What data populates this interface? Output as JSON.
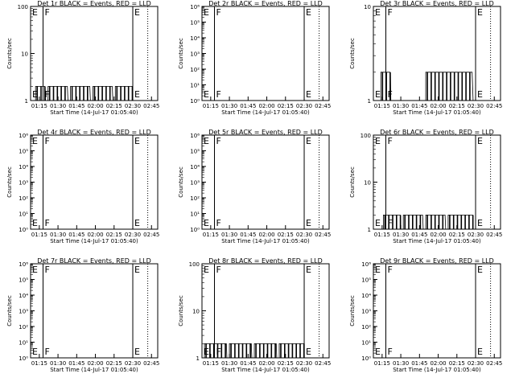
{
  "colors": {
    "events": "#000000",
    "lld": "#ff0000",
    "background": "#ffffff"
  },
  "chart_data": [
    {
      "type": "line",
      "title": "Det 1r BLACK = Events, RED = LLD",
      "xlabel": "Start Time (14-Jul-17 01:05:40)",
      "ylabel": "Counts/sec",
      "yscale": "log",
      "ylim": [
        1,
        100
      ],
      "ytick_labels": [
        "1",
        "10",
        "100"
      ],
      "ytick_values": [
        1,
        10,
        100
      ],
      "xtick_labels": [
        "01:15",
        "01:30",
        "01:45",
        "02:00",
        "02:15",
        "02:30",
        "02:45"
      ],
      "xlim_minutes": [
        68,
        170
      ],
      "markers": [
        {
          "label": "E",
          "minute": 68
        },
        {
          "label": "F",
          "minute": 78
        },
        {
          "label": "E",
          "minute": 150
        }
      ],
      "dotted_line_minute": 162,
      "series": [
        {
          "name": "Events",
          "segments": [
            {
              "from": 72,
              "to": 80,
              "level": 2
            },
            {
              "from": 82,
              "to": 98,
              "level": 2
            },
            {
              "from": 100,
              "to": 116,
              "level": 2
            },
            {
              "from": 118,
              "to": 134,
              "level": 2
            },
            {
              "from": 136,
              "to": 150,
              "level": 2
            }
          ]
        }
      ]
    },
    {
      "type": "line",
      "title": "Det 2r BLACK = Events, RED = LLD",
      "xlabel": "Start Time (14-Jul-17 01:05:40)",
      "ylabel": "Counts/sec",
      "yscale": "log",
      "ylim": [
        1,
        1000000
      ],
      "ytick_labels": [
        "10⁰",
        "10¹",
        "10²",
        "10³",
        "10⁴",
        "10⁵",
        "10⁶"
      ],
      "ytick_values": [
        1,
        10,
        100,
        1000,
        10000,
        100000,
        1000000
      ],
      "xtick_labels": [
        "01:15",
        "01:30",
        "01:45",
        "02:00",
        "02:15",
        "02:30",
        "02:45"
      ],
      "xlim_minutes": [
        68,
        170
      ],
      "markers": [
        {
          "label": "E",
          "minute": 68
        },
        {
          "label": "F",
          "minute": 78
        },
        {
          "label": "E",
          "minute": 150
        }
      ],
      "dotted_line_minute": 162,
      "series": []
    },
    {
      "type": "line",
      "title": "Det 3r BLACK = Events, RED = LLD",
      "xlabel": "Start Time (14-Jul-17 01:05:40)",
      "ylabel": "Counts/sec",
      "yscale": "log",
      "ylim": [
        1,
        10
      ],
      "ytick_labels": [
        "1",
        "10"
      ],
      "ytick_values": [
        1,
        10
      ],
      "xtick_labels": [
        "01:15",
        "01:30",
        "01:45",
        "02:00",
        "02:15",
        "02:30",
        "02:45"
      ],
      "xlim_minutes": [
        68,
        170
      ],
      "markers": [
        {
          "label": "E",
          "minute": 68
        },
        {
          "label": "F",
          "minute": 78
        },
        {
          "label": "E",
          "minute": 150
        }
      ],
      "dotted_line_minute": 162,
      "series": [
        {
          "name": "Events",
          "segments": [
            {
              "from": 74,
              "to": 82,
              "level": 2
            },
            {
              "from": 110,
              "to": 148,
              "level": 2
            }
          ]
        }
      ]
    },
    {
      "type": "line",
      "title": "Det 4r BLACK = Events, RED = LLD",
      "xlabel": "Start Time (14-Jul-17 01:05:40)",
      "ylabel": "Counts/sec",
      "yscale": "log",
      "ylim": [
        1,
        1000000
      ],
      "ytick_labels": [
        "10⁰",
        "10¹",
        "10²",
        "10³",
        "10⁴",
        "10⁵",
        "10⁶"
      ],
      "ytick_values": [
        1,
        10,
        100,
        1000,
        10000,
        100000,
        1000000
      ],
      "xtick_labels": [
        "01:15",
        "01:30",
        "01:45",
        "02:00",
        "02:15",
        "02:30",
        "02:45"
      ],
      "xlim_minutes": [
        68,
        170
      ],
      "markers": [
        {
          "label": "E",
          "minute": 68
        },
        {
          "label": "F",
          "minute": 78
        },
        {
          "label": "E",
          "minute": 150
        }
      ],
      "dotted_line_minute": 162,
      "series": []
    },
    {
      "type": "line",
      "title": "Det 5r BLACK = Events, RED = LLD",
      "xlabel": "Start Time (14-Jul-17 01:05:40)",
      "ylabel": "Counts/sec",
      "yscale": "log",
      "ylim": [
        1,
        1000000
      ],
      "ytick_labels": [
        "10⁰",
        "10¹",
        "10²",
        "10³",
        "10⁴",
        "10⁵",
        "10⁶"
      ],
      "ytick_values": [
        1,
        10,
        100,
        1000,
        10000,
        100000,
        1000000
      ],
      "xtick_labels": [
        "01:15",
        "01:30",
        "01:45",
        "02:00",
        "02:15",
        "02:30",
        "02:45"
      ],
      "xlim_minutes": [
        68,
        170
      ],
      "markers": [
        {
          "label": "E",
          "minute": 68
        },
        {
          "label": "F",
          "minute": 78
        },
        {
          "label": "E",
          "minute": 150
        }
      ],
      "dotted_line_minute": 162,
      "series": []
    },
    {
      "type": "line",
      "title": "Det 6r BLACK = Events, RED = LLD",
      "xlabel": "Start Time (14-Jul-17 01:05:40)",
      "ylabel": "Counts/sec",
      "yscale": "log",
      "ylim": [
        1,
        100
      ],
      "ytick_labels": [
        "1",
        "10",
        "100"
      ],
      "ytick_values": [
        1,
        10,
        100
      ],
      "xtick_labels": [
        "01:15",
        "01:30",
        "01:45",
        "02:00",
        "02:15",
        "02:30",
        "02:45"
      ],
      "xlim_minutes": [
        68,
        170
      ],
      "markers": [
        {
          "label": "E",
          "minute": 68
        },
        {
          "label": "F",
          "minute": 78
        },
        {
          "label": "E",
          "minute": 150
        }
      ],
      "dotted_line_minute": 162,
      "series": [
        {
          "name": "Events",
          "segments": [
            {
              "from": 76,
              "to": 90,
              "level": 2
            },
            {
              "from": 92,
              "to": 108,
              "level": 2
            },
            {
              "from": 110,
              "to": 126,
              "level": 2
            },
            {
              "from": 128,
              "to": 148,
              "level": 2
            }
          ]
        }
      ]
    },
    {
      "type": "line",
      "title": "Det 7r BLACK = Events, RED = LLD",
      "xlabel": "Start Time (14-Jul-17 01:05:40)",
      "ylabel": "Counts/sec",
      "yscale": "log",
      "ylim": [
        1,
        1000000
      ],
      "ytick_labels": [
        "10⁰",
        "10¹",
        "10²",
        "10³",
        "10⁴",
        "10⁵",
        "10⁶"
      ],
      "ytick_values": [
        1,
        10,
        100,
        1000,
        10000,
        100000,
        1000000
      ],
      "xtick_labels": [
        "01:15",
        "01:30",
        "01:45",
        "02:00",
        "02:15",
        "02:30",
        "02:45"
      ],
      "xlim_minutes": [
        68,
        170
      ],
      "markers": [
        {
          "label": "E",
          "minute": 68
        },
        {
          "label": "F",
          "minute": 78
        },
        {
          "label": "E",
          "minute": 150
        }
      ],
      "dotted_line_minute": 162,
      "series": []
    },
    {
      "type": "line",
      "title": "Det 8r BLACK = Events, RED = LLD",
      "xlabel": "Start Time (14-Jul-17 01:05:40)",
      "ylabel": "Counts/sec",
      "yscale": "log",
      "ylim": [
        1,
        100
      ],
      "ytick_labels": [
        "1",
        "10",
        "100"
      ],
      "ytick_values": [
        1,
        10,
        100
      ],
      "xtick_labels": [
        "01:15",
        "01:30",
        "01:45",
        "02:00",
        "02:15",
        "02:30",
        "02:45"
      ],
      "xlim_minutes": [
        68,
        170
      ],
      "markers": [
        {
          "label": "E",
          "minute": 68
        },
        {
          "label": "F",
          "minute": 78
        },
        {
          "label": "E",
          "minute": 150
        }
      ],
      "dotted_line_minute": 162,
      "series": [
        {
          "name": "Events",
          "segments": [
            {
              "from": 70,
              "to": 88,
              "level": 2
            },
            {
              "from": 90,
              "to": 108,
              "level": 2
            },
            {
              "from": 110,
              "to": 128,
              "level": 2
            },
            {
              "from": 130,
              "to": 150,
              "level": 2
            }
          ]
        }
      ]
    },
    {
      "type": "line",
      "title": "Det 9r BLACK = Events, RED = LLD",
      "xlabel": "Start Time (14-Jul-17 01:05:40)",
      "ylabel": "Counts/sec",
      "yscale": "log",
      "ylim": [
        1,
        1000000
      ],
      "ytick_labels": [
        "10⁰",
        "10¹",
        "10²",
        "10³",
        "10⁴",
        "10⁵",
        "10⁶"
      ],
      "ytick_values": [
        1,
        10,
        100,
        1000,
        10000,
        100000,
        1000000
      ],
      "xtick_labels": [
        "01:15",
        "01:30",
        "01:45",
        "02:00",
        "02:15",
        "02:30",
        "02:45"
      ],
      "xlim_minutes": [
        68,
        170
      ],
      "markers": [
        {
          "label": "E",
          "minute": 68
        },
        {
          "label": "F",
          "minute": 78
        },
        {
          "label": "E",
          "minute": 150
        }
      ],
      "dotted_line_minute": 162,
      "series": []
    }
  ]
}
